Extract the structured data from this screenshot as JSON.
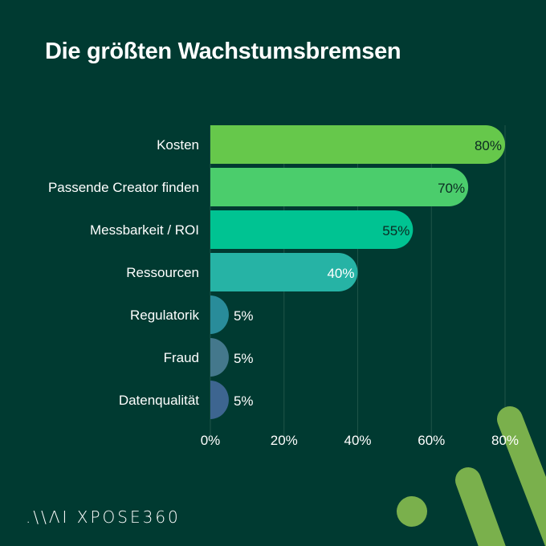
{
  "chart_data": {
    "type": "bar",
    "orientation": "horizontal",
    "title": "Die größten Wachstumsbremsen",
    "categories": [
      "Kosten",
      "Passende Creator finden",
      "Messbarkeit / ROI",
      "Ressourcen",
      "Regulatorik",
      "Fraud",
      "Datenqualität"
    ],
    "values": [
      80,
      70,
      55,
      40,
      5,
      5,
      5
    ],
    "value_labels": [
      "80%",
      "70%",
      "55%",
      "40%",
      "5%",
      "5%",
      "5%"
    ],
    "colors": [
      "#66c84b",
      "#4bcd6c",
      "#00c392",
      "#26b3a5",
      "#298c9a",
      "#44788c",
      "#3d6590"
    ],
    "xlim": [
      0,
      80
    ],
    "xticks": [
      0,
      20,
      40,
      60,
      80
    ],
    "xtick_labels": [
      "0%",
      "20%",
      "40%",
      "60%",
      "80%"
    ],
    "grid": true,
    "xlabel": "",
    "ylabel": ""
  },
  "background": "#003a31",
  "accent": "#7ab04c",
  "logo": "\\\\ΛI XPOSE360"
}
